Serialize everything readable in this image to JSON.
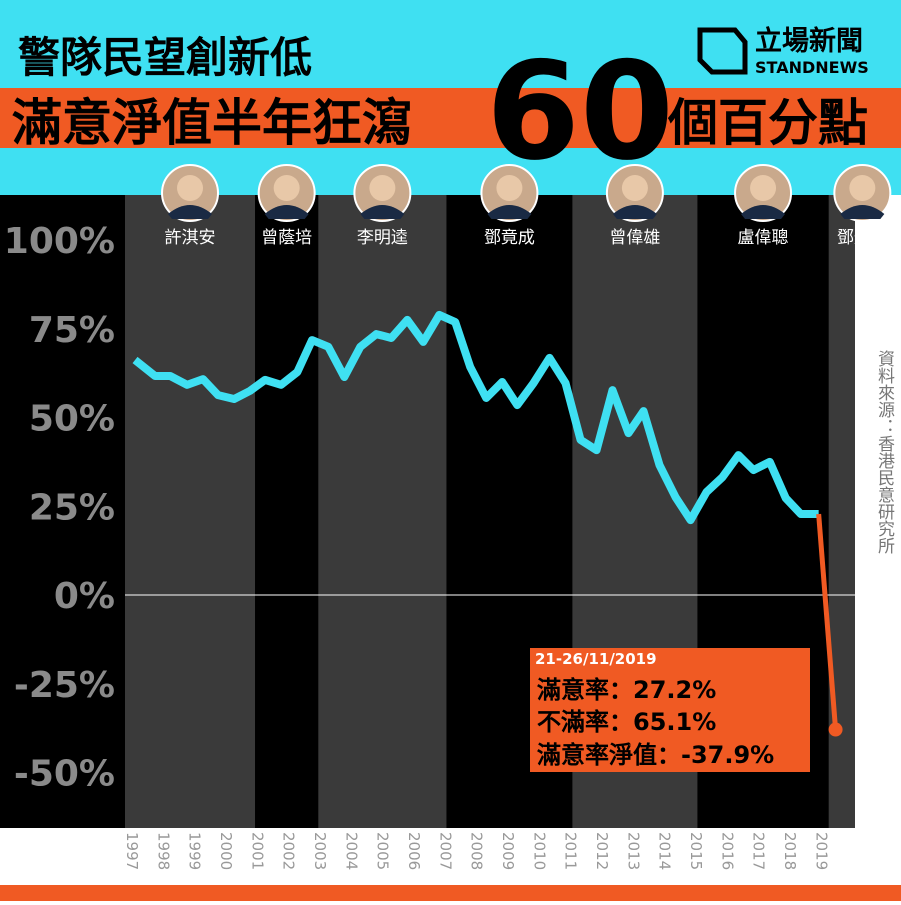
{
  "header": {
    "title_line1": "警隊民望創新低",
    "title_line2a": "滿意淨值半年狂瀉",
    "title_big": "60",
    "title_line2b": "個百分點",
    "logo_cn": "立場新聞",
    "logo_en": "STANDNEWS"
  },
  "chart_data": {
    "type": "line",
    "commissioners": [
      {
        "name": "許淇安",
        "start": 1997
      },
      {
        "name": "曾蔭培",
        "start": 2001.15
      },
      {
        "name": "李明逵",
        "start": 2003.17
      },
      {
        "name": "鄧竟成",
        "start": 2007.26
      },
      {
        "name": "曾偉雄",
        "start": 2011.28
      },
      {
        "name": "盧偉聰",
        "start": 2015.27
      },
      {
        "name": "鄧炳強",
        "start": 2019.46
      }
    ],
    "series": [
      {
        "color": "#3fe0f2",
        "x": [
          1997.32,
          1997.96,
          1998.44,
          1998.98,
          1999.49,
          1999.97,
          2000.48,
          2000.99,
          2001.47,
          2001.98,
          2002.5,
          2002.97,
          2003.49,
          2004.0,
          2004.51,
          2005.02,
          2005.5,
          2006.01,
          2006.52,
          2007.03,
          2007.54,
          2008.02,
          2008.53,
          2009.04,
          2009.52,
          2010.04,
          2010.55,
          2011.06,
          2011.54,
          2012.05,
          2012.56,
          2013.07,
          2013.55,
          2014.06,
          2014.57,
          2015.05,
          2015.56,
          2016.07,
          2016.58,
          2017.06,
          2017.58,
          2018.09,
          2018.57,
          2019.14
        ],
        "values": [
          66.2,
          61.7,
          61.7,
          59.2,
          60.8,
          56.3,
          55.2,
          57.5,
          60.6,
          59.2,
          62.8,
          71.8,
          69.9,
          61.4,
          69.9,
          73.5,
          72.4,
          77.5,
          71.3,
          78.9,
          76.9,
          64.2,
          55.5,
          60.0,
          53.5,
          59.7,
          66.8,
          59.7,
          43.7,
          40.8,
          57.7,
          45.6,
          51.8,
          36.6,
          27.6,
          21.1,
          29.0,
          33.2,
          39.4,
          35.2,
          37.5,
          27.3,
          22.8,
          22.8
        ]
      },
      {
        "color": "#f05a23",
        "x": [
          2019.14,
          2019.68
        ],
        "values": [
          22.8,
          -37.9
        ]
      }
    ],
    "xlim": [
      1997,
      2020.3
    ],
    "xticks": [
      1997,
      1998,
      1999,
      2000,
      2001,
      2002,
      2003,
      2004,
      2005,
      2006,
      2007,
      2008,
      2009,
      2010,
      2011,
      2012,
      2013,
      2014,
      2015,
      2016,
      2017,
      2018,
      2019
    ],
    "ylim": [
      -62.5,
      112.5
    ],
    "yticks": [
      {
        "value": -50,
        "label": "-50%"
      },
      {
        "value": -25,
        "label": "-25%"
      },
      {
        "value": 0,
        "label": "0%"
      },
      {
        "value": 25,
        "label": "25%"
      },
      {
        "value": 50,
        "label": "50%"
      },
      {
        "value": 75,
        "label": "75%"
      },
      {
        "value": 100,
        "label": "100%"
      }
    ],
    "annotation": [
      "21-26/11/2019",
      "滿意率：27.2%",
      "不滿率：65.1%",
      "滿意率淨值：-37.9%"
    ],
    "source": "資料來源：香港民意研究所"
  }
}
